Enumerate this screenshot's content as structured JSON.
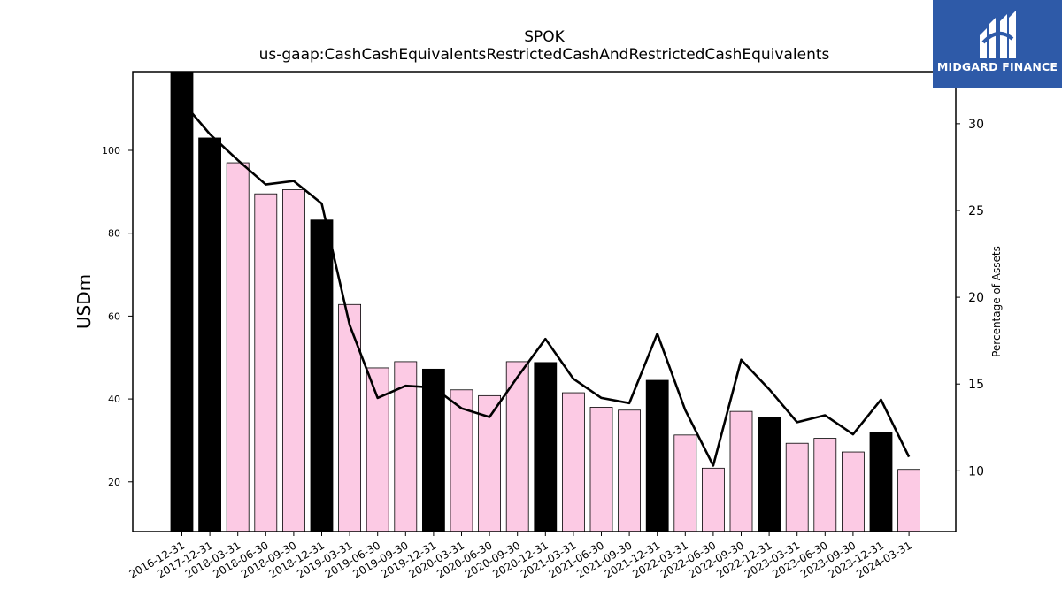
{
  "chart_data": {
    "type": "bar",
    "title": "SPOK",
    "subtitle": "us-gaap:CashCashEquivalentsRestrictedCashAndRestrictedCashEquivalents",
    "ylabel": "USDm",
    "y2label": "Percentage of Assets",
    "ylim": [
      8,
      119
    ],
    "y2lim": [
      6.5,
      33.0
    ],
    "yticks": [
      20,
      40,
      60,
      80,
      100
    ],
    "y2ticks": [
      10,
      15,
      20,
      25,
      30
    ],
    "categories": [
      "2016-12-31",
      "2017-12-31",
      "2018-03-31",
      "2018-06-30",
      "2018-09-30",
      "2018-12-31",
      "2019-03-31",
      "2019-06-30",
      "2019-09-30",
      "2019-12-31",
      "2020-03-31",
      "2020-06-30",
      "2020-09-30",
      "2020-12-31",
      "2021-03-31",
      "2021-06-30",
      "2021-09-30",
      "2021-12-31",
      "2022-03-31",
      "2022-06-30",
      "2022-09-30",
      "2022-12-31",
      "2023-03-31",
      "2023-06-30",
      "2023-09-30",
      "2023-12-31",
      "2024-03-31"
    ],
    "series": [
      {
        "type": "bar",
        "axis": "left",
        "values": [
          119,
          103,
          97,
          89.5,
          90.5,
          83.2,
          62.8,
          47.5,
          49.0,
          47.2,
          42.2,
          40.8,
          49.0,
          48.8,
          41.5,
          38.0,
          37.3,
          44.5,
          31.3,
          23.3,
          37.0,
          35.5,
          29.3,
          30.5,
          27.2,
          32.0,
          23.0
        ],
        "colors": [
          "#000000",
          "#000000",
          "#fccae4",
          "#fccae4",
          "#fccae4",
          "#000000",
          "#fccae4",
          "#fccae4",
          "#fccae4",
          "#000000",
          "#fccae4",
          "#fccae4",
          "#fccae4",
          "#000000",
          "#fccae4",
          "#fccae4",
          "#fccae4",
          "#000000",
          "#fccae4",
          "#fccae4",
          "#fccae4",
          "#000000",
          "#fccae4",
          "#fccae4",
          "#fccae4",
          "#000000",
          "#fccae4"
        ]
      },
      {
        "type": "line",
        "axis": "right",
        "color": "#000000",
        "values": [
          31.3,
          29.4,
          27.9,
          26.5,
          26.7,
          25.4,
          18.4,
          14.2,
          14.9,
          14.8,
          13.6,
          13.1,
          15.4,
          17.6,
          15.3,
          14.2,
          13.9,
          17.9,
          13.5,
          10.3,
          16.4,
          14.7,
          12.8,
          13.2,
          12.1,
          14.1,
          10.8
        ]
      }
    ],
    "grid": false,
    "legend": "none"
  },
  "logo": {
    "text": "MIDGARD FINANCE",
    "color": "#2e5aa8"
  }
}
